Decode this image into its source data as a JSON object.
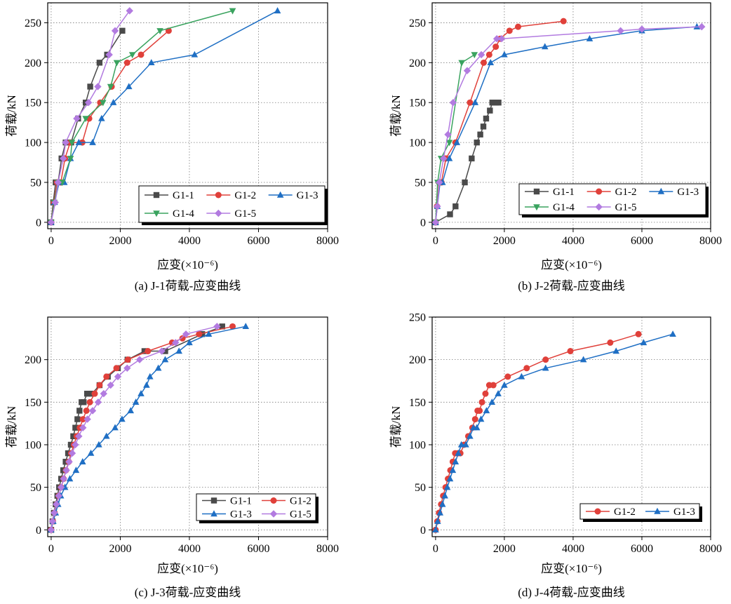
{
  "colors": {
    "G1-1": "#4a4a4a",
    "G1-2": "#e0403a",
    "G1-3": "#1f6fc4",
    "G1-4": "#3aa35f",
    "G1-5": "#b27be0"
  },
  "markers": {
    "G1-1": "square",
    "G1-2": "circle",
    "G1-3": "triangle-up",
    "G1-4": "triangle-down",
    "G1-5": "diamond"
  },
  "chart_data": [
    {
      "type": "line",
      "caption": "(a) J-1荷载-应变曲线",
      "xlabel": "应变(×10⁻⁶)",
      "ylabel": "荷载/kN",
      "xlim": [
        -100,
        8000
      ],
      "ylim": [
        -8,
        275
      ],
      "xticks": [
        0,
        2000,
        4000,
        6000,
        8000
      ],
      "yticks": [
        0,
        50,
        100,
        150,
        200,
        250
      ],
      "grid": true,
      "legend_position": "bottom-right",
      "legend_columns": 3,
      "series": [
        {
          "name": "G1-1",
          "x": [
            0,
            60,
            130,
            200,
            300,
            420,
            580,
            780,
            1000,
            1130,
            1400,
            1620,
            2060
          ],
          "y": [
            0,
            25,
            50,
            50,
            80,
            100,
            100,
            130,
            150,
            170,
            200,
            210,
            240
          ]
        },
        {
          "name": "G1-2",
          "x": [
            0,
            80,
            170,
            280,
            400,
            550,
            900,
            1100,
            1420,
            1750,
            2200,
            2600,
            3400
          ],
          "y": [
            0,
            25,
            50,
            50,
            80,
            100,
            100,
            130,
            150,
            170,
            200,
            210,
            240
          ]
        },
        {
          "name": "G1-3",
          "x": [
            0,
            100,
            230,
            380,
            560,
            800,
            1200,
            1460,
            1800,
            2250,
            2900,
            4150,
            6550
          ],
          "y": [
            0,
            25,
            50,
            50,
            80,
            100,
            100,
            130,
            150,
            170,
            200,
            210,
            265
          ]
        },
        {
          "name": "G1-4",
          "x": [
            0,
            90,
            200,
            320,
            560,
            600,
            1000,
            1500,
            1720,
            1900,
            2350,
            3150,
            5250
          ],
          "y": [
            0,
            25,
            50,
            50,
            80,
            100,
            130,
            150,
            170,
            200,
            210,
            240,
            265
          ]
        },
        {
          "name": "G1-5",
          "x": [
            0,
            120,
            200,
            350,
            420,
            740,
            1080,
            1350,
            1680,
            1850,
            2270
          ],
          "y": [
            0,
            25,
            50,
            80,
            100,
            130,
            150,
            170,
            210,
            240,
            265
          ]
        }
      ]
    },
    {
      "type": "line",
      "caption": "(b) J-2荷载-应变曲线",
      "xlabel": "应变(×10⁻⁶)",
      "ylabel": "荷载/kN",
      "xlim": [
        -100,
        8000
      ],
      "ylim": [
        -8,
        275
      ],
      "xticks": [
        0,
        2000,
        4000,
        6000,
        8000
      ],
      "yticks": [
        0,
        50,
        100,
        150,
        200,
        250
      ],
      "grid": true,
      "legend_position": "bottom-right",
      "legend_columns": 3,
      "series": [
        {
          "name": "G1-1",
          "x": [
            0,
            420,
            580,
            850,
            1050,
            1200,
            1300,
            1390,
            1470,
            1580,
            1650,
            1750,
            1830
          ],
          "y": [
            0,
            10,
            20,
            50,
            80,
            100,
            110,
            120,
            130,
            140,
            150,
            150,
            150
          ]
        },
        {
          "name": "G1-2",
          "x": [
            0,
            40,
            100,
            170,
            300,
            580,
            1000,
            1400,
            1560,
            1750,
            1880,
            2150,
            2400,
            3720
          ],
          "y": [
            0,
            20,
            50,
            50,
            80,
            100,
            150,
            200,
            210,
            220,
            230,
            240,
            245,
            252
          ]
        },
        {
          "name": "G1-3",
          "x": [
            0,
            50,
            130,
            200,
            400,
            620,
            1150,
            1600,
            2000,
            3180,
            4480,
            6000,
            7600
          ],
          "y": [
            0,
            20,
            50,
            50,
            80,
            100,
            150,
            200,
            210,
            220,
            230,
            240,
            245
          ]
        },
        {
          "name": "G1-4",
          "x": [
            0,
            60,
            160,
            400,
            760,
            1130
          ],
          "y": [
            0,
            50,
            80,
            100,
            200,
            210
          ]
        },
        {
          "name": "G1-5",
          "x": [
            0,
            50,
            110,
            230,
            360,
            510,
            920,
            1330,
            1780,
            1920,
            5380,
            6000,
            7740
          ],
          "y": [
            0,
            20,
            50,
            80,
            110,
            150,
            190,
            210,
            230,
            230,
            240,
            242,
            245
          ]
        }
      ]
    },
    {
      "type": "line",
      "caption": "(c) J-3荷载-应变曲线",
      "xlabel": "应变(×10⁻⁶)",
      "ylabel": "荷载/kN",
      "xlim": [
        -100,
        8000
      ],
      "ylim": [
        -8,
        250
      ],
      "xticks": [
        0,
        2000,
        4000,
        6000,
        8000
      ],
      "yticks": [
        0,
        50,
        100,
        150,
        200
      ],
      "grid": true,
      "legend_position": "bottom-right",
      "legend_columns": 2,
      "series": [
        {
          "name": "G1-1",
          "x": [
            0,
            40,
            80,
            130,
            180,
            230,
            290,
            350,
            420,
            490,
            570,
            640,
            700,
            760,
            820,
            880,
            940,
            1040,
            1180,
            1400,
            1640,
            1930,
            2210,
            2700,
            3300,
            4370,
            4950
          ],
          "y": [
            0,
            10,
            20,
            30,
            40,
            50,
            60,
            70,
            80,
            90,
            100,
            110,
            120,
            130,
            140,
            150,
            150,
            160,
            160,
            170,
            180,
            190,
            200,
            210,
            210,
            230,
            239
          ]
        },
        {
          "name": "G1-2",
          "x": [
            0,
            50,
            100,
            160,
            220,
            290,
            360,
            430,
            510,
            580,
            660,
            740,
            830,
            920,
            1020,
            1120,
            1260,
            1400,
            1600,
            1890,
            2220,
            2800,
            3500,
            3800,
            4280,
            5250
          ],
          "y": [
            0,
            10,
            20,
            30,
            40,
            50,
            60,
            70,
            80,
            90,
            100,
            110,
            120,
            130,
            140,
            150,
            160,
            170,
            180,
            190,
            200,
            210,
            220,
            225,
            230,
            239
          ]
        },
        {
          "name": "G1-3",
          "x": [
            0,
            60,
            130,
            200,
            280,
            400,
            540,
            720,
            910,
            1150,
            1380,
            1600,
            1850,
            2050,
            2300,
            2450,
            2600,
            2760,
            2860,
            3100,
            3300,
            3700,
            4000,
            4560,
            5630
          ],
          "y": [
            0,
            10,
            20,
            30,
            40,
            50,
            60,
            70,
            80,
            90,
            100,
            110,
            120,
            130,
            140,
            150,
            160,
            170,
            180,
            190,
            200,
            210,
            220,
            230,
            239
          ]
        },
        {
          "name": "G1-5",
          "x": [
            0,
            40,
            90,
            150,
            220,
            290,
            360,
            440,
            520,
            610,
            700,
            800,
            920,
            1050,
            1200,
            1360,
            1520,
            1720,
            1930,
            2200,
            2560,
            3200,
            3600,
            3900,
            4800
          ],
          "y": [
            0,
            10,
            20,
            30,
            40,
            50,
            60,
            70,
            80,
            90,
            100,
            110,
            120,
            130,
            140,
            150,
            160,
            170,
            180,
            190,
            200,
            210,
            220,
            230,
            239
          ]
        }
      ]
    },
    {
      "type": "line",
      "caption": "(d) J-4荷载-应变曲线",
      "xlabel": "应变(×10⁻⁶)",
      "ylabel": "荷载/kN",
      "xlim": [
        -100,
        8000
      ],
      "ylim": [
        -8,
        250
      ],
      "xticks": [
        0,
        2000,
        4000,
        6000,
        8000
      ],
      "yticks": [
        0,
        50,
        100,
        150,
        200,
        250
      ],
      "grid": true,
      "legend_position": "bottom-right",
      "legend_columns": 2,
      "series": [
        {
          "name": "G1-2",
          "x": [
            0,
            50,
            100,
            160,
            220,
            290,
            360,
            430,
            500,
            570,
            650,
            720,
            830,
            950,
            1070,
            1150,
            1220,
            1280,
            1350,
            1450,
            1560,
            1680,
            2100,
            2650,
            3200,
            3920,
            5080,
            5900
          ],
          "y": [
            0,
            10,
            20,
            30,
            40,
            50,
            60,
            70,
            80,
            90,
            90,
            90,
            100,
            110,
            120,
            130,
            140,
            140,
            150,
            160,
            170,
            170,
            180,
            190,
            200,
            210,
            220,
            230
          ]
        },
        {
          "name": "G1-3",
          "x": [
            0,
            60,
            130,
            200,
            270,
            340,
            420,
            500,
            580,
            660,
            750,
            880,
            1000,
            1100,
            1200,
            1320,
            1480,
            1640,
            1820,
            2000,
            2500,
            3200,
            4300,
            5250,
            6050,
            6900
          ],
          "y": [
            0,
            10,
            20,
            30,
            40,
            50,
            60,
            70,
            80,
            90,
            100,
            100,
            110,
            120,
            120,
            130,
            140,
            150,
            160,
            170,
            180,
            190,
            200,
            210,
            220,
            230
          ]
        }
      ]
    }
  ]
}
